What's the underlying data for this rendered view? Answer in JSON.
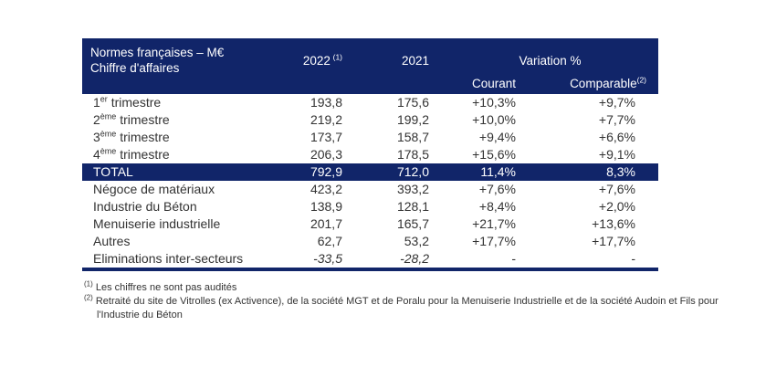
{
  "colors": {
    "navy": "#112569",
    "text": "#333333",
    "header_text": "#ffffff"
  },
  "header": {
    "title_line1": "Normes françaises – M€",
    "title_line2": "Chiffre d'affaires",
    "col_2022": "2022",
    "col_2022_sup": "(1)",
    "col_2021": "2021",
    "col_variation": "Variation %",
    "col_courant": "Courant",
    "col_comparable": "Comparable",
    "col_comparable_sup": "(2)"
  },
  "rows": [
    {
      "label": "1",
      "label_sup": "er",
      "label_rest": " trimestre",
      "y2022": "193,8",
      "y2021": "175,6",
      "courant": "+10,3%",
      "comparable": "+9,7%"
    },
    {
      "label": "2",
      "label_sup": "ème",
      "label_rest": " trimestre",
      "y2022": "219,2",
      "y2021": "199,2",
      "courant": "+10,0%",
      "comparable": "+7,7%"
    },
    {
      "label": "3",
      "label_sup": "ème",
      "label_rest": " trimestre",
      "y2022": "173,7",
      "y2021": "158,7",
      "courant": "+9,4%",
      "comparable": "+6,6%"
    },
    {
      "label": "4",
      "label_sup": "ème",
      "label_rest": " trimestre",
      "y2022": "206,3",
      "y2021": "178,5",
      "courant": "+15,6%",
      "comparable": "+9,1%"
    },
    {
      "label": "TOTAL",
      "label_sup": "",
      "label_rest": "",
      "y2022": "792,9",
      "y2021": "712,0",
      "courant": "11,4%",
      "comparable": "8,3%"
    },
    {
      "label": "Négoce de matériaux",
      "label_sup": "",
      "label_rest": "",
      "y2022": "423,2",
      "y2021": "393,2",
      "courant": "+7,6%",
      "comparable": "+7,6%"
    },
    {
      "label": "Industrie du Béton",
      "label_sup": "",
      "label_rest": "",
      "y2022": "138,9",
      "y2021": "128,1",
      "courant": "+8,4%",
      "comparable": "+2,0%"
    },
    {
      "label": "Menuiserie industrielle",
      "label_sup": "",
      "label_rest": "",
      "y2022": "201,7",
      "y2021": "165,7",
      "courant": "+21,7%",
      "comparable": "+13,6%"
    },
    {
      "label": "Autres",
      "label_sup": "",
      "label_rest": "",
      "y2022": "62,7",
      "y2021": "53,2",
      "courant": "+17,7%",
      "comparable": "+17,7%"
    },
    {
      "label": "Eliminations inter-secteurs",
      "label_sup": "",
      "label_rest": "",
      "y2022": "-33,5",
      "y2021": "-28,2",
      "courant": "-",
      "comparable": "-"
    }
  ],
  "footnotes": [
    {
      "sup": "(1)",
      "text": "Les chiffres ne sont pas audités"
    },
    {
      "sup": "(2)",
      "text": "Retraité du site de Vitrolles (ex Activence), de la société MGT et de Poralu pour la Menuiserie Industrielle et de la société Audoin et Fils pour l'Industrie du Béton"
    }
  ]
}
